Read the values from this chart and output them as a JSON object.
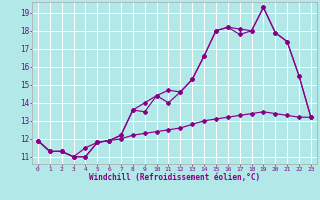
{
  "xlabel": "Windchill (Refroidissement éolien,°C)",
  "bg_color": "#b2e8e8",
  "line_color": "#880088",
  "grid_color": "#ffffff",
  "xlim": [
    -0.5,
    23.5
  ],
  "ylim": [
    10.6,
    19.6
  ],
  "xticks": [
    0,
    1,
    2,
    3,
    4,
    5,
    6,
    7,
    8,
    9,
    10,
    11,
    12,
    13,
    14,
    15,
    16,
    17,
    18,
    19,
    20,
    21,
    22,
    23
  ],
  "yticks": [
    11,
    12,
    13,
    14,
    15,
    16,
    17,
    18,
    19
  ],
  "series1_x": [
    0,
    1,
    2,
    3,
    4,
    5,
    6,
    7,
    8,
    9,
    10,
    11,
    12,
    13,
    14,
    15,
    16,
    17,
    18,
    19,
    20,
    21,
    22,
    23
  ],
  "series1_y": [
    11.9,
    11.3,
    11.3,
    11.0,
    11.0,
    11.8,
    11.9,
    12.2,
    13.6,
    14.0,
    14.4,
    14.7,
    14.6,
    15.3,
    16.6,
    18.0,
    18.2,
    18.1,
    18.0,
    19.3,
    17.9,
    17.4,
    15.5,
    13.2
  ],
  "series2_x": [
    0,
    1,
    2,
    3,
    4,
    5,
    6,
    7,
    8,
    9,
    10,
    11,
    12,
    13,
    14,
    15,
    16,
    17,
    18,
    19,
    20,
    21,
    22,
    23
  ],
  "series2_y": [
    11.9,
    11.3,
    11.3,
    11.0,
    11.0,
    11.8,
    11.9,
    12.2,
    13.6,
    13.5,
    14.4,
    14.0,
    14.6,
    15.3,
    16.6,
    18.0,
    18.2,
    17.8,
    18.0,
    19.3,
    17.9,
    17.4,
    15.5,
    13.2
  ],
  "series3_x": [
    0,
    1,
    2,
    3,
    4,
    5,
    6,
    7,
    8,
    9,
    10,
    11,
    12,
    13,
    14,
    15,
    16,
    17,
    18,
    19,
    20,
    21,
    22,
    23
  ],
  "series3_y": [
    11.9,
    11.3,
    11.3,
    11.0,
    11.5,
    11.8,
    11.9,
    12.0,
    12.2,
    12.3,
    12.4,
    12.5,
    12.6,
    12.8,
    13.0,
    13.1,
    13.2,
    13.3,
    13.4,
    13.5,
    13.4,
    13.3,
    13.2,
    13.2
  ]
}
